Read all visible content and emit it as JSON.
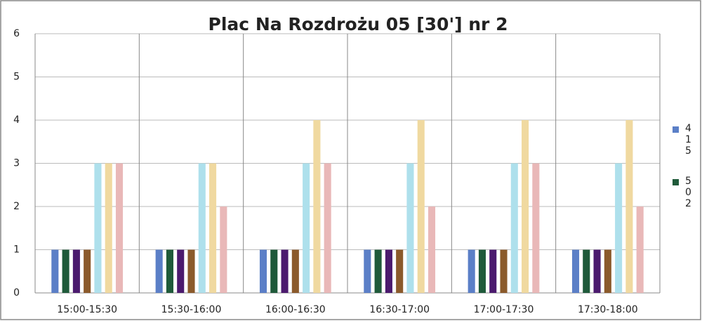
{
  "chart_data": {
    "type": "bar",
    "title": "Plac Na Rozdrożu 05 [30'] nr 2",
    "categories": [
      "15:00-15:30",
      "15:30-16:00",
      "16:00-16:30",
      "16:30-17:00",
      "17:00-17:30",
      "17:30-18:00"
    ],
    "series": [
      {
        "name": "415",
        "color": "#5b7fc7",
        "values": [
          1,
          1,
          1,
          1,
          1,
          1
        ]
      },
      {
        "name": "502",
        "color": "#1f5a3a",
        "values": [
          1,
          1,
          1,
          1,
          1,
          1
        ]
      },
      {
        "color": "#4b1a6e",
        "values": [
          1,
          1,
          1,
          1,
          1,
          1
        ]
      },
      {
        "color": "#8b5a2b",
        "values": [
          1,
          1,
          1,
          1,
          1,
          1
        ]
      },
      {
        "color": "#aee0ec",
        "values": [
          3,
          3,
          3,
          3,
          3,
          3
        ]
      },
      {
        "color": "#f0d9a0",
        "values": [
          3,
          3,
          4,
          4,
          4,
          4
        ]
      },
      {
        "color": "#e9b8b8",
        "values": [
          3,
          2,
          3,
          2,
          3,
          2
        ]
      }
    ],
    "ylim": [
      0,
      6
    ],
    "yticks": [
      0,
      1,
      2,
      3,
      4,
      5,
      6
    ],
    "grid": true,
    "legend": "right"
  }
}
